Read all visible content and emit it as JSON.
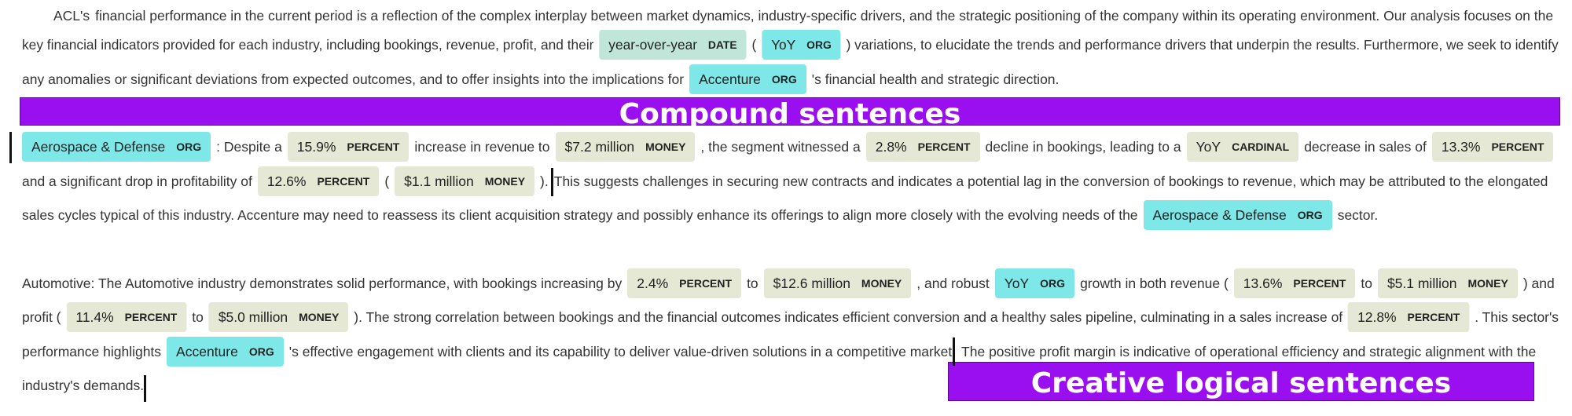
{
  "headers": {
    "compound": "Compound sentences",
    "creative": "Creative logical sentences"
  },
  "intro": {
    "l1": {
      "org1": "ACL's",
      "t1": "financial performance in the current period is a reflection of the complex interplay between market dynamics, industry-specific drivers, and the strategic positioning of the company within its operating environment. Our analysis focuses on the"
    },
    "l2": {
      "t1": "key financial indicators provided for each industry, including bookings, revenue, profit, and their",
      "e1": "year-over-year",
      "e1l": "DATE",
      "t2": "(",
      "e2": "YoY",
      "e2l": "ORG",
      "t3": ") variations, to elucidate the trends and performance drivers that underpin the results. Furthermore, we seek to identify"
    },
    "l3": {
      "t1": "any anomalies or significant deviations from expected outcomes, and to offer insights into the implications for",
      "e1": "Accenture",
      "e1l": "ORG",
      "t2": "'s financial health and strategic direction."
    }
  },
  "aero": {
    "l4": {
      "e1": "Aerospace & Defense",
      "e1l": "ORG",
      "t1": ": Despite a",
      "e2": "15.9%",
      "e2l": "PERCENT",
      "t2": "increase in revenue to",
      "e3": "$7.2 million",
      "e3l": "MONEY",
      "t3": ", the segment witnessed a",
      "e4": "2.8%",
      "e4l": "PERCENT",
      "t4": "decline in bookings, leading to a",
      "e5": "YoY",
      "e5l": "CARDINAL",
      "t5": "decrease in sales of",
      "e6": "13.3%",
      "e6l": "PERCENT"
    },
    "l5": {
      "t1": "and a significant drop in profitability of",
      "e1": "12.6%",
      "e1l": "PERCENT",
      "t2": "(",
      "e2": "$1.1 million",
      "e2l": "MONEY",
      "t3": ").",
      "t4": "This suggests challenges in securing new contracts and indicates a potential lag in the conversion of bookings to revenue, which may be attributed to the elongated"
    },
    "l6": {
      "t1": "sales cycles typical of this industry. Accenture may need to reassess its client acquisition strategy and possibly enhance its offerings to align more closely with the evolving needs of the",
      "e1": "Aerospace & Defense",
      "e1l": "ORG",
      "t2": "sector."
    }
  },
  "auto": {
    "l7": {
      "t1": "Automotive: The Automotive industry demonstrates solid performance, with bookings increasing by",
      "e1": "2.4%",
      "e1l": "PERCENT",
      "t2": "to",
      "e2": "$12.6 million",
      "e2l": "MONEY",
      "t3": ", and robust",
      "e3": "YoY",
      "e3l": "ORG",
      "t4": "growth in both revenue (",
      "e4": "13.6%",
      "e4l": "PERCENT",
      "t5": "to",
      "e5": "$5.1 million",
      "e5l": "MONEY",
      "t6": ") and"
    },
    "l8": {
      "t1": "profit (",
      "e1": "11.4%",
      "e1l": "PERCENT",
      "t2": "to",
      "e2": "$5.0 million",
      "e2l": "MONEY",
      "t3": "). The strong correlation between bookings and the financial outcomes indicates efficient conversion and a healthy sales pipeline, culminating in a sales increase of",
      "e3": "12.8%",
      "e3l": "PERCENT",
      "t4": ". This sector's"
    },
    "l9": {
      "t1": "performance highlights",
      "e1": "Accenture",
      "e1l": "ORG",
      "t2": "'s effective engagement with clients and its capability to deliver value-driven solutions in a competitive market.",
      "t3": "The positive profit margin is indicative of operational efficiency and strategic alignment with the"
    },
    "l10": {
      "t1": "industry's demands."
    }
  }
}
